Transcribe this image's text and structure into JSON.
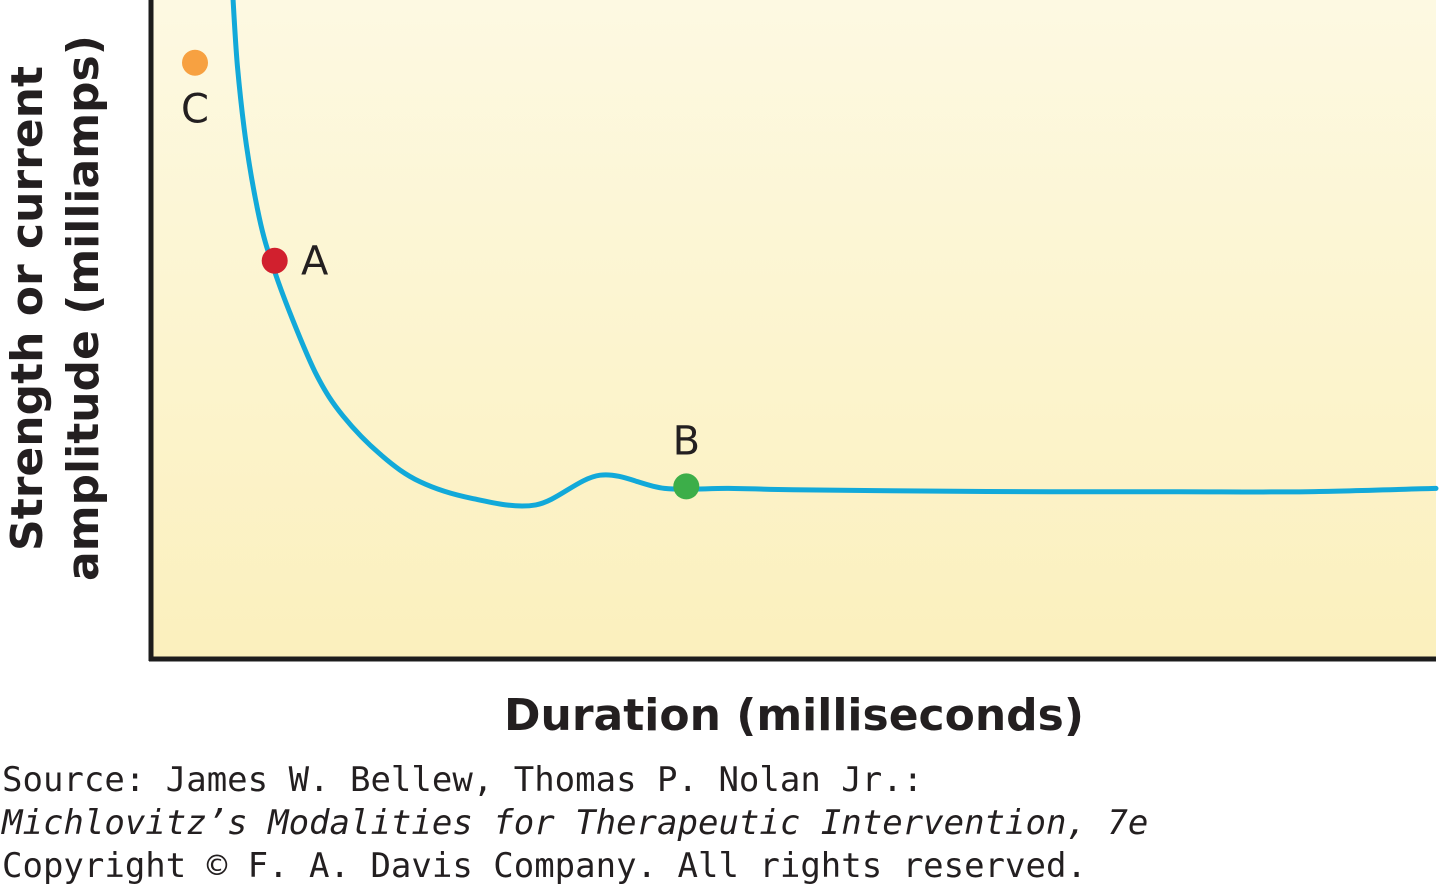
{
  "chart_data": {
    "type": "line",
    "xlabel": "Duration (milliseconds)",
    "ylabel_lines": [
      "Strength or current",
      "amplitude (milliamps)"
    ],
    "xlim": [
      0,
      10
    ],
    "ylim": [
      0,
      10
    ],
    "grid": false,
    "colors": {
      "background_top": "#fdf9e2",
      "background_bottom": "#fbf0bd",
      "curve": "#12a9d9",
      "axis": "#1c1c1c"
    },
    "series": [
      {
        "x": [
          0.64,
          0.68,
          0.75,
          0.85,
          0.95,
          1.1,
          1.3,
          1.5,
          1.8,
          2.1,
          2.5,
          3.0,
          3.5,
          4.0,
          4.5,
          5.0,
          6.0,
          7.0,
          8.0,
          9.0,
          10.0
        ],
        "y": [
          10.2,
          9.0,
          7.8,
          6.7,
          6.0,
          5.2,
          4.3,
          3.7,
          3.1,
          2.7,
          2.45,
          2.35,
          2.8,
          2.6,
          2.6,
          2.58,
          2.56,
          2.55,
          2.55,
          2.55,
          2.6
        ]
      }
    ],
    "points": [
      {
        "label": "A",
        "x": 0.97,
        "y": 6.05,
        "color": "#d1202e"
      },
      {
        "label": "B",
        "x": 4.17,
        "y": 2.63,
        "color": "#3cae49"
      },
      {
        "label": "C",
        "x": 0.35,
        "y": 9.05,
        "color": "#f7a141"
      }
    ]
  },
  "source": {
    "line1": "Source: James W. Bellew, Thomas P. Nolan Jr.:",
    "line2": "Michlovitz’s Modalities for Therapeutic Intervention, 7e",
    "line3": "Copyright © F. A. Davis Company. All rights reserved."
  }
}
